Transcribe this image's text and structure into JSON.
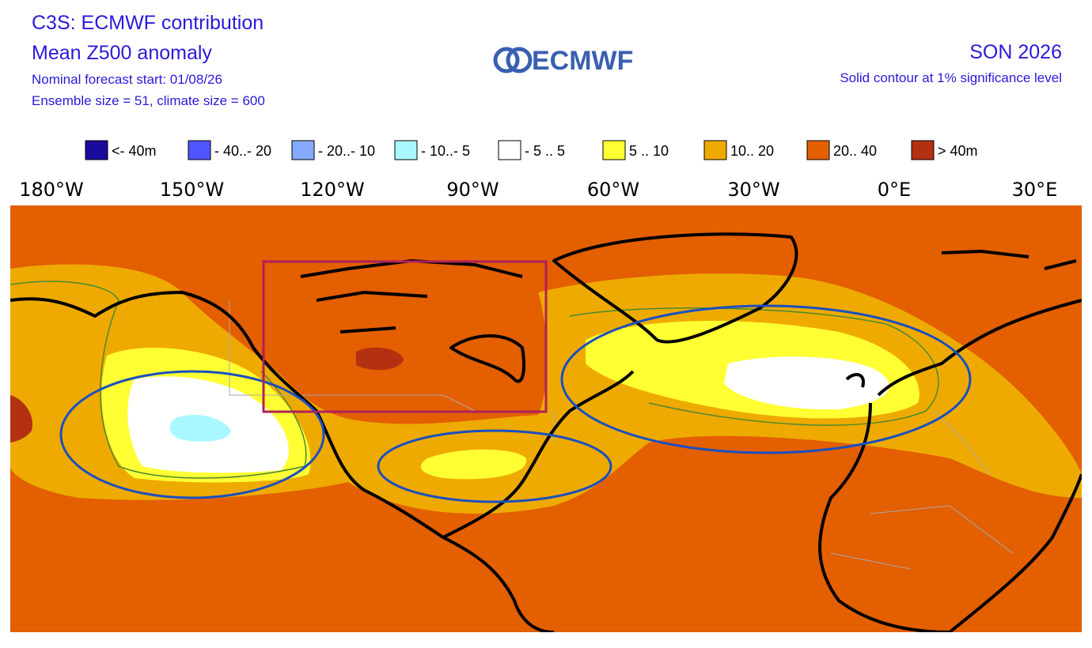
{
  "header": {
    "title": "C3S: ECMWF contribution",
    "subtitle": "Mean Z500 anomaly",
    "forecast_start": "Nominal forecast start: 01/08/26",
    "ensemble": "Ensemble size = 51, climate size = 600",
    "logo": "ECMWF",
    "season": "SON 2026",
    "note": "Solid contour at 1% significance level"
  },
  "legend": [
    {
      "label": "<- 40m",
      "color": "#1a0a9c"
    },
    {
      "label": "- 40..- 20",
      "color": "#5055ff"
    },
    {
      "label": "- 20..- 10",
      "color": "#86aaff"
    },
    {
      "label": "- 10..- 5",
      "color": "#aaf8ff"
    },
    {
      "label": "- 5 .. 5",
      "color": "#ffffff"
    },
    {
      "label": "5 .. 10",
      "color": "#ffff33"
    },
    {
      "label": "10.. 20",
      "color": "#eeaa00"
    },
    {
      "label": "20.. 40",
      "color": "#e35f00"
    },
    {
      "label": ">  40m",
      "color": "#b33010"
    }
  ],
  "longitude_labels": [
    "180°W",
    "150°W",
    "120°W",
    "90°W",
    "60°W",
    "30°W",
    "0°E",
    "30°E"
  ]
}
